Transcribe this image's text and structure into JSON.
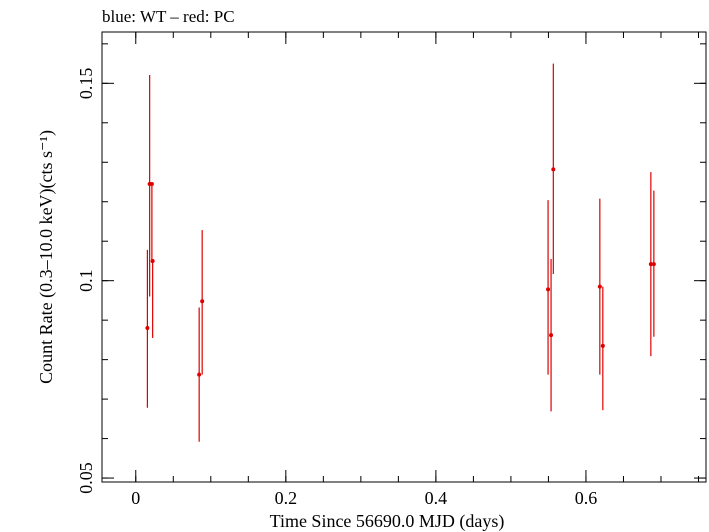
{
  "chart_data": {
    "type": "scatter",
    "title": "blue: WT – red: PC",
    "xlabel": "Time Since 56690.0 MJD (days)",
    "ylabel": "Count Rate (0.3–10.0 keV)(cts s⁻¹)",
    "xlim": [
      -0.045,
      0.76
    ],
    "ylim": [
      0.049,
      0.163
    ],
    "x_ticks": [
      {
        "value": 0,
        "label": "0"
      },
      {
        "value": 0.2,
        "label": "0.2"
      },
      {
        "value": 0.4,
        "label": "0.4"
      },
      {
        "value": 0.6,
        "label": "0.6"
      }
    ],
    "y_ticks": [
      {
        "value": 0.05,
        "label": "0.05"
      },
      {
        "value": 0.1,
        "label": "0.1"
      },
      {
        "value": 0.15,
        "label": "0.15"
      }
    ],
    "y_minor_step": 0.01,
    "x_minor_step": 0.05,
    "grid": false,
    "series": [
      {
        "name": "PC",
        "color": "#dd0000",
        "points": [
          {
            "x": 0.0155,
            "y": 0.088,
            "ylow": 0.0678,
            "yhigh": 0.1078
          },
          {
            "x": 0.0185,
            "y": 0.1245,
            "ylow": 0.096,
            "yhigh": 0.1521
          },
          {
            "x": 0.0215,
            "y": 0.1245,
            "ylow": 0.1045,
            "yhigh": 0.1245
          },
          {
            "x": 0.0225,
            "y": 0.105,
            "ylow": 0.0855,
            "yhigh": 0.105
          },
          {
            "x": 0.0845,
            "y": 0.0762,
            "ylow": 0.0592,
            "yhigh": 0.0932
          },
          {
            "x": 0.0885,
            "y": 0.0948,
            "ylow": 0.0762,
            "yhigh": 0.1128
          },
          {
            "x": 0.5495,
            "y": 0.0978,
            "ylow": 0.0762,
            "yhigh": 0.1204
          },
          {
            "x": 0.5535,
            "y": 0.0862,
            "ylow": 0.0669,
            "yhigh": 0.1055
          },
          {
            "x": 0.5565,
            "y": 0.1282,
            "ylow": 0.1017,
            "yhigh": 0.155
          },
          {
            "x": 0.6185,
            "y": 0.0985,
            "ylow": 0.0762,
            "yhigh": 0.1208
          },
          {
            "x": 0.6225,
            "y": 0.0835,
            "ylow": 0.0672,
            "yhigh": 0.0985
          },
          {
            "x": 0.6865,
            "y": 0.1042,
            "ylow": 0.0809,
            "yhigh": 0.1275
          },
          {
            "x": 0.6905,
            "y": 0.1042,
            "ylow": 0.0858,
            "yhigh": 0.1228
          }
        ]
      }
    ]
  }
}
